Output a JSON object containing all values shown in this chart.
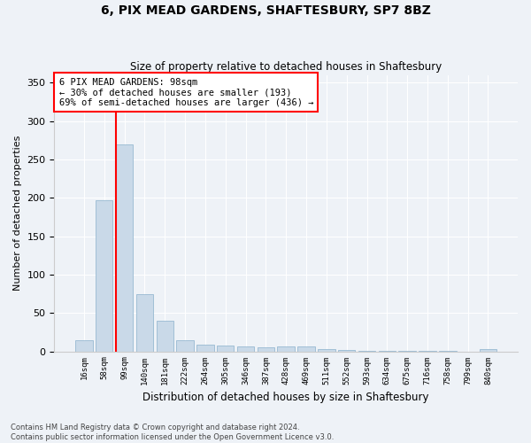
{
  "title": "6, PIX MEAD GARDENS, SHAFTESBURY, SP7 8BZ",
  "subtitle": "Size of property relative to detached houses in Shaftesbury",
  "xlabel": "Distribution of detached houses by size in Shaftesbury",
  "ylabel": "Number of detached properties",
  "bar_labels": [
    "16sqm",
    "58sqm",
    "99sqm",
    "140sqm",
    "181sqm",
    "222sqm",
    "264sqm",
    "305sqm",
    "346sqm",
    "387sqm",
    "428sqm",
    "469sqm",
    "511sqm",
    "552sqm",
    "593sqm",
    "634sqm",
    "675sqm",
    "716sqm",
    "758sqm",
    "799sqm",
    "840sqm"
  ],
  "bar_values": [
    15,
    197,
    270,
    74,
    40,
    14,
    9,
    7,
    6,
    5,
    6,
    6,
    3,
    2,
    1,
    1,
    1,
    1,
    1,
    0,
    3
  ],
  "bar_color": "#c9d9e8",
  "bar_edge_color": "#8ab0cc",
  "red_line_index": 2,
  "annotation_text": "6 PIX MEAD GARDENS: 98sqm\n← 30% of detached houses are smaller (193)\n69% of semi-detached houses are larger (436) →",
  "ylim": [
    0,
    360
  ],
  "yticks": [
    0,
    50,
    100,
    150,
    200,
    250,
    300,
    350
  ],
  "footer_line1": "Contains HM Land Registry data © Crown copyright and database right 2024.",
  "footer_line2": "Contains public sector information licensed under the Open Government Licence v3.0.",
  "background_color": "#eef2f7",
  "plot_bg_color": "#eef2f7",
  "grid_color": "#ffffff"
}
